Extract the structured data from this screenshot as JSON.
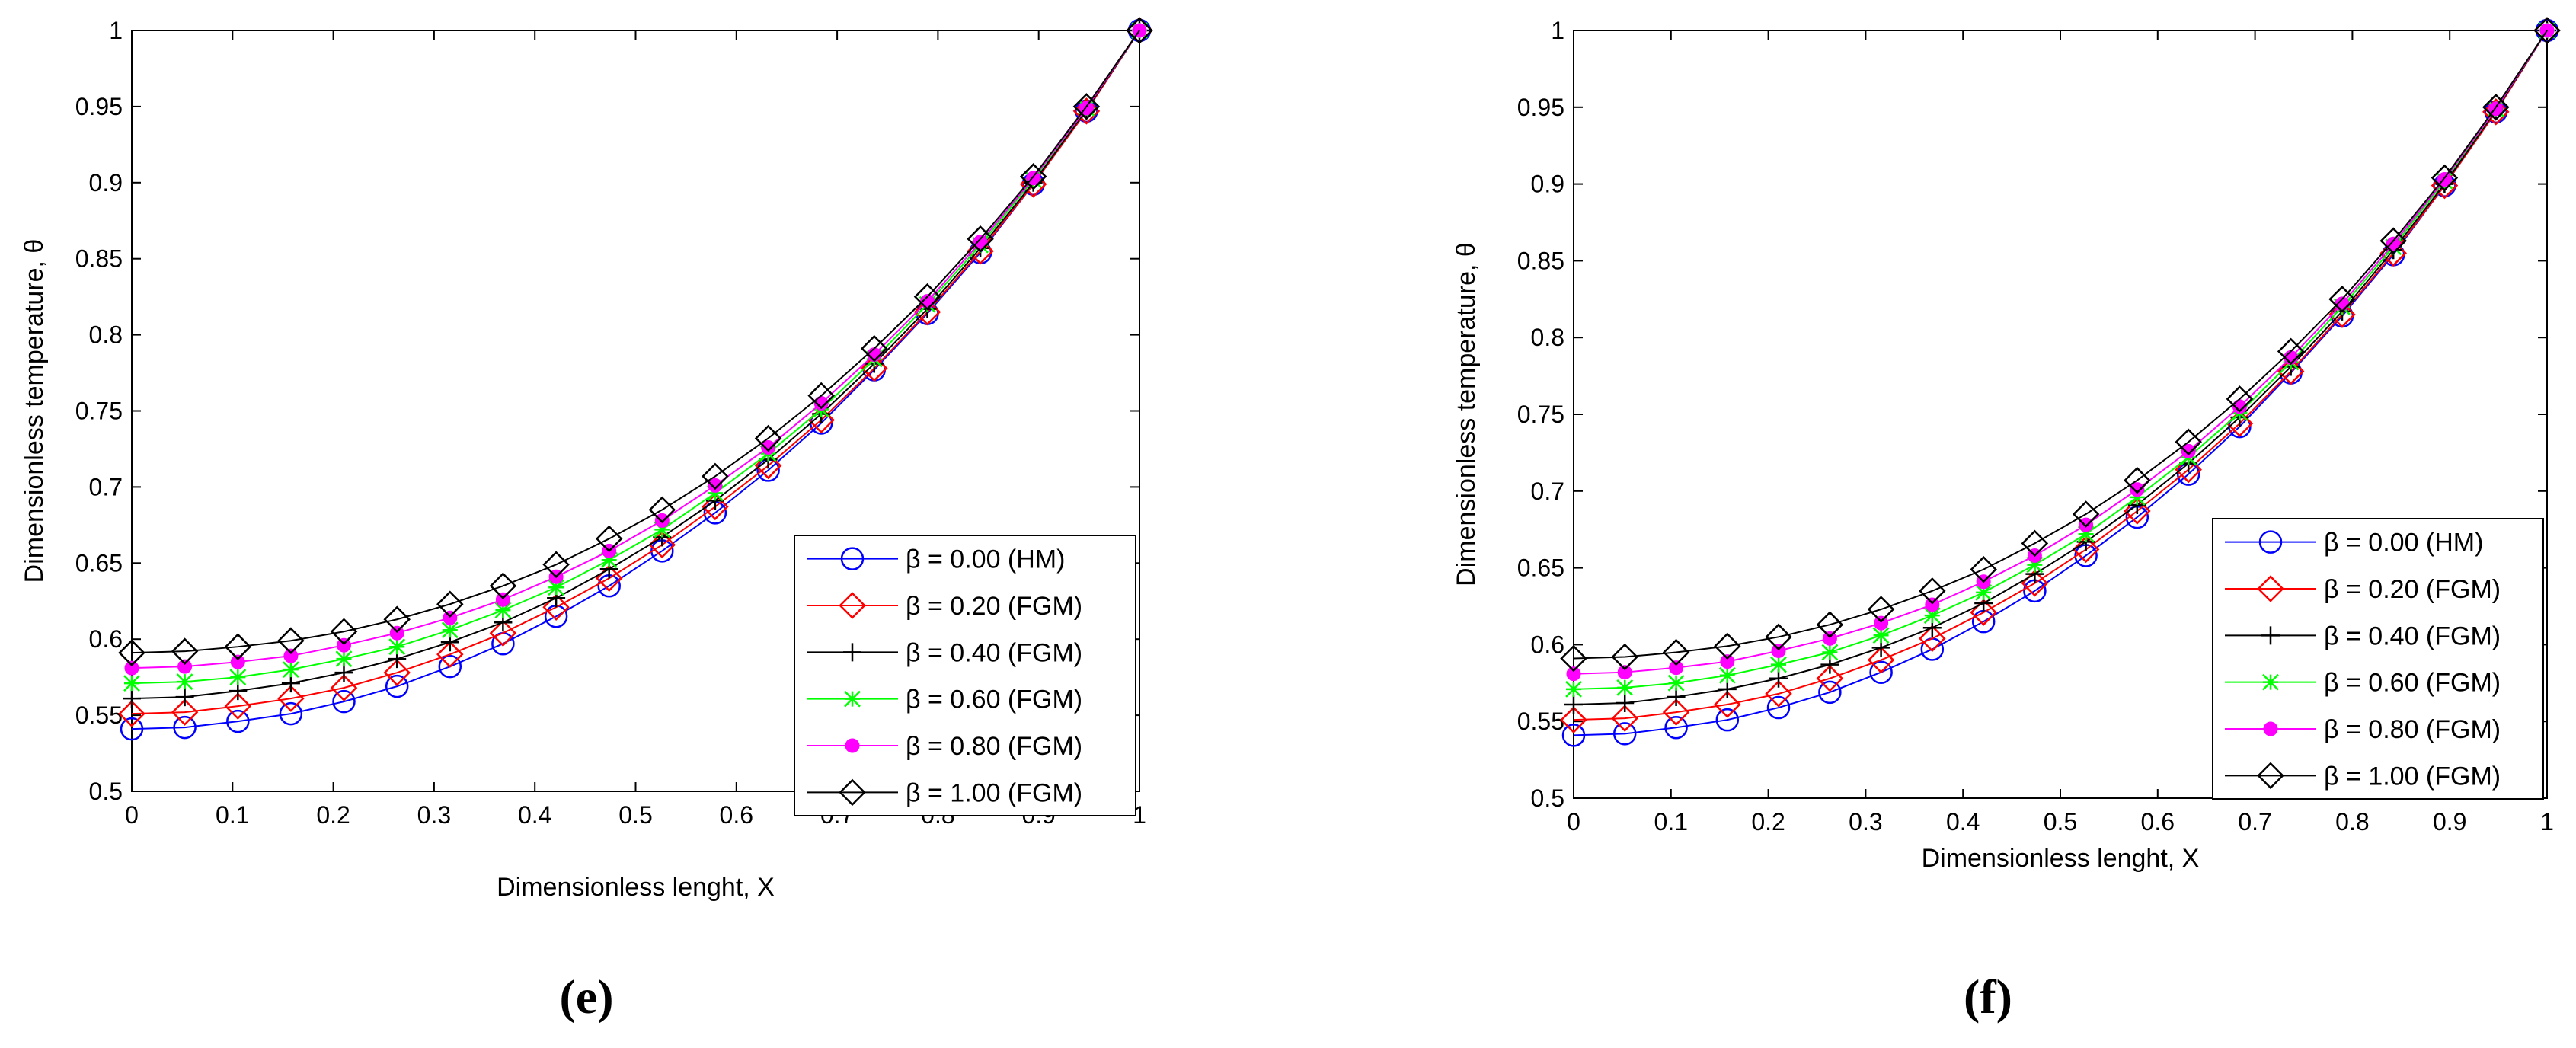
{
  "chart_data": [
    {
      "type": "line",
      "panel_label": "(e)",
      "xlabel": "Dimensionless lenght, X",
      "ylabel": "Dimensionless temperature, θ",
      "xlim": [
        0,
        1
      ],
      "ylim": [
        0.5,
        1
      ],
      "xticks": [
        0,
        0.1,
        0.2,
        0.3,
        0.4,
        0.5,
        0.6,
        0.7,
        0.8,
        0.9,
        1
      ],
      "xtick_labels": [
        "0",
        "0.1",
        "0.2",
        "0.3",
        "0.4",
        "0.5",
        "0.6",
        "0.7",
        "0.8",
        "0.9",
        "1"
      ],
      "yticks": [
        0.5,
        0.55,
        0.6,
        0.65,
        0.7,
        0.75,
        0.8,
        0.85,
        0.9,
        0.95,
        1
      ],
      "ytick_labels": [
        "0.5",
        "0.55",
        "0.6",
        "0.65",
        "0.7",
        "0.75",
        "0.8",
        "0.85",
        "0.9",
        "0.95",
        "1"
      ],
      "grid": false,
      "legend_position": "lower-right",
      "x": [
        0,
        0.0526,
        0.1053,
        0.1579,
        0.2105,
        0.2632,
        0.3158,
        0.3684,
        0.4211,
        0.4737,
        0.5263,
        0.5789,
        0.6316,
        0.6842,
        0.7368,
        0.7895,
        0.8421,
        0.8947,
        0.9474,
        1
      ],
      "series": [
        {
          "name": "β = 0.00 (HM)",
          "color": "#0000ff",
          "marker": "circle",
          "values": [
            0.541,
            0.542,
            0.546,
            0.551,
            0.559,
            0.569,
            0.582,
            0.597,
            0.615,
            0.635,
            0.658,
            0.683,
            0.711,
            0.742,
            0.777,
            0.814,
            0.854,
            0.899,
            0.947,
            1.0
          ]
        },
        {
          "name": "β = 0.20 (FGM)",
          "color": "#ff0000",
          "marker": "diamond",
          "values": [
            0.551,
            0.552,
            0.556,
            0.561,
            0.568,
            0.578,
            0.59,
            0.604,
            0.621,
            0.64,
            0.662,
            0.687,
            0.714,
            0.744,
            0.778,
            0.815,
            0.855,
            0.899,
            0.947,
            1.0
          ]
        },
        {
          "name": "β = 0.40 (FGM)",
          "color": "#000000",
          "marker": "plus",
          "values": [
            0.561,
            0.562,
            0.566,
            0.571,
            0.578,
            0.587,
            0.598,
            0.611,
            0.627,
            0.646,
            0.667,
            0.691,
            0.718,
            0.748,
            0.781,
            0.817,
            0.857,
            0.9,
            0.948,
            1.0
          ]
        },
        {
          "name": "β = 0.60 (FGM)",
          "color": "#00ff00",
          "marker": "star",
          "values": [
            0.571,
            0.572,
            0.575,
            0.58,
            0.587,
            0.595,
            0.606,
            0.619,
            0.634,
            0.652,
            0.672,
            0.696,
            0.722,
            0.751,
            0.784,
            0.82,
            0.859,
            0.902,
            0.949,
            1.0
          ]
        },
        {
          "name": "β = 0.80 (FGM)",
          "color": "#ff00ff",
          "marker": "dot",
          "values": [
            0.581,
            0.582,
            0.585,
            0.589,
            0.596,
            0.604,
            0.614,
            0.626,
            0.641,
            0.658,
            0.678,
            0.701,
            0.726,
            0.755,
            0.787,
            0.822,
            0.861,
            0.903,
            0.949,
            1.0
          ]
        },
        {
          "name": "β = 1.00 (FGM)",
          "color": "#000000",
          "marker": "diamond",
          "values": [
            0.591,
            0.592,
            0.595,
            0.599,
            0.605,
            0.613,
            0.623,
            0.635,
            0.649,
            0.666,
            0.685,
            0.707,
            0.732,
            0.76,
            0.791,
            0.825,
            0.863,
            0.904,
            0.95,
            1.0
          ]
        }
      ]
    },
    {
      "type": "line",
      "panel_label": "(f)",
      "xlabel": "Dimensionless lenght, X",
      "ylabel": "Dimensionless temperature, θ",
      "xlim": [
        0,
        1
      ],
      "ylim": [
        0.5,
        1
      ],
      "xticks": [
        0,
        0.1,
        0.2,
        0.3,
        0.4,
        0.5,
        0.6,
        0.7,
        0.8,
        0.9,
        1
      ],
      "xtick_labels": [
        "0",
        "0.1",
        "0.2",
        "0.3",
        "0.4",
        "0.5",
        "0.6",
        "0.7",
        "0.8",
        "0.9",
        "1"
      ],
      "yticks": [
        0.5,
        0.55,
        0.6,
        0.65,
        0.7,
        0.75,
        0.8,
        0.85,
        0.9,
        0.95,
        1
      ],
      "ytick_labels": [
        "0.5",
        "0.55",
        "0.6",
        "0.65",
        "0.7",
        "0.75",
        "0.8",
        "0.85",
        "0.9",
        "0.95",
        "1"
      ],
      "grid": false,
      "legend_position": "lower-right",
      "x": [
        0,
        0.0526,
        0.1053,
        0.1579,
        0.2105,
        0.2632,
        0.3158,
        0.3684,
        0.4211,
        0.4737,
        0.5263,
        0.5789,
        0.6316,
        0.6842,
        0.7368,
        0.7895,
        0.8421,
        0.8947,
        0.9474,
        1
      ],
      "series": [
        {
          "name": "β = 0.00 (HM)",
          "color": "#0000ff",
          "marker": "circle",
          "values": [
            0.541,
            0.542,
            0.546,
            0.551,
            0.559,
            0.569,
            0.582,
            0.597,
            0.615,
            0.635,
            0.658,
            0.683,
            0.711,
            0.742,
            0.777,
            0.814,
            0.854,
            0.899,
            0.947,
            1.0
          ]
        },
        {
          "name": "β = 0.20 (FGM)",
          "color": "#ff0000",
          "marker": "diamond",
          "values": [
            0.551,
            0.552,
            0.556,
            0.561,
            0.568,
            0.578,
            0.59,
            0.604,
            0.621,
            0.64,
            0.662,
            0.687,
            0.714,
            0.744,
            0.778,
            0.815,
            0.855,
            0.899,
            0.947,
            1.0
          ]
        },
        {
          "name": "β = 0.40 (FGM)",
          "color": "#000000",
          "marker": "plus",
          "values": [
            0.561,
            0.562,
            0.566,
            0.571,
            0.578,
            0.587,
            0.598,
            0.611,
            0.627,
            0.646,
            0.667,
            0.691,
            0.718,
            0.748,
            0.781,
            0.817,
            0.857,
            0.9,
            0.948,
            1.0
          ]
        },
        {
          "name": "β = 0.60 (FGM)",
          "color": "#00ff00",
          "marker": "star",
          "values": [
            0.571,
            0.572,
            0.575,
            0.58,
            0.587,
            0.595,
            0.606,
            0.619,
            0.634,
            0.652,
            0.672,
            0.696,
            0.722,
            0.751,
            0.784,
            0.82,
            0.859,
            0.902,
            0.949,
            1.0
          ]
        },
        {
          "name": "β = 0.80 (FGM)",
          "color": "#ff00ff",
          "marker": "dot",
          "values": [
            0.581,
            0.582,
            0.585,
            0.589,
            0.596,
            0.604,
            0.614,
            0.626,
            0.641,
            0.658,
            0.678,
            0.701,
            0.726,
            0.755,
            0.787,
            0.822,
            0.861,
            0.903,
            0.949,
            1.0
          ]
        },
        {
          "name": "β = 1.00 (FGM)",
          "color": "#000000",
          "marker": "diamond",
          "values": [
            0.591,
            0.592,
            0.595,
            0.599,
            0.605,
            0.613,
            0.623,
            0.635,
            0.649,
            0.666,
            0.685,
            0.707,
            0.732,
            0.76,
            0.791,
            0.825,
            0.863,
            0.904,
            0.95,
            1.0
          ]
        }
      ]
    }
  ]
}
